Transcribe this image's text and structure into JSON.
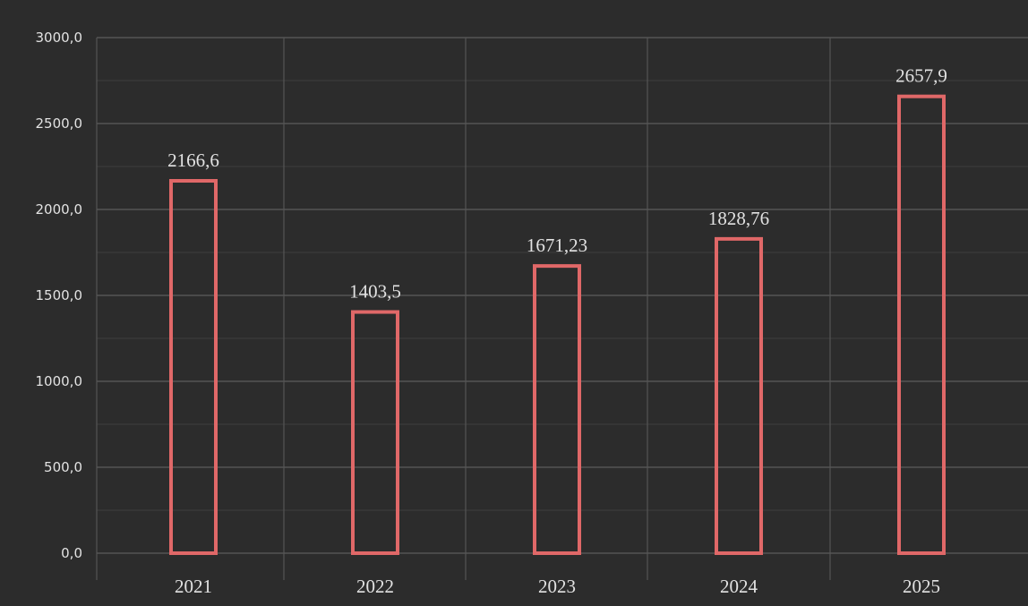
{
  "colors": {
    "panel_background": "#2c2c2c",
    "bar_outline": "#e06868",
    "grid": "#555555",
    "text": "#e2e2e2",
    "page_background": "#ffffff"
  },
  "chart_data": {
    "type": "bar",
    "categories": [
      "2021",
      "2022",
      "2023",
      "2024",
      "2025"
    ],
    "values": [
      2166.6,
      1403.5,
      1671.23,
      1828.76,
      2657.9
    ],
    "data_labels": [
      "2166,6",
      "1403,5",
      "1671,23",
      "1828,76",
      "2657,9"
    ],
    "y_ticks": [
      "0,0",
      "500,0",
      "1000,0",
      "1500,0",
      "2000,0",
      "2500,0",
      "3000,0"
    ],
    "ylim": [
      0,
      3000
    ],
    "title": "",
    "xlabel": "",
    "ylabel": "",
    "grid": true,
    "bar_style": "outlined",
    "legend": "none"
  }
}
